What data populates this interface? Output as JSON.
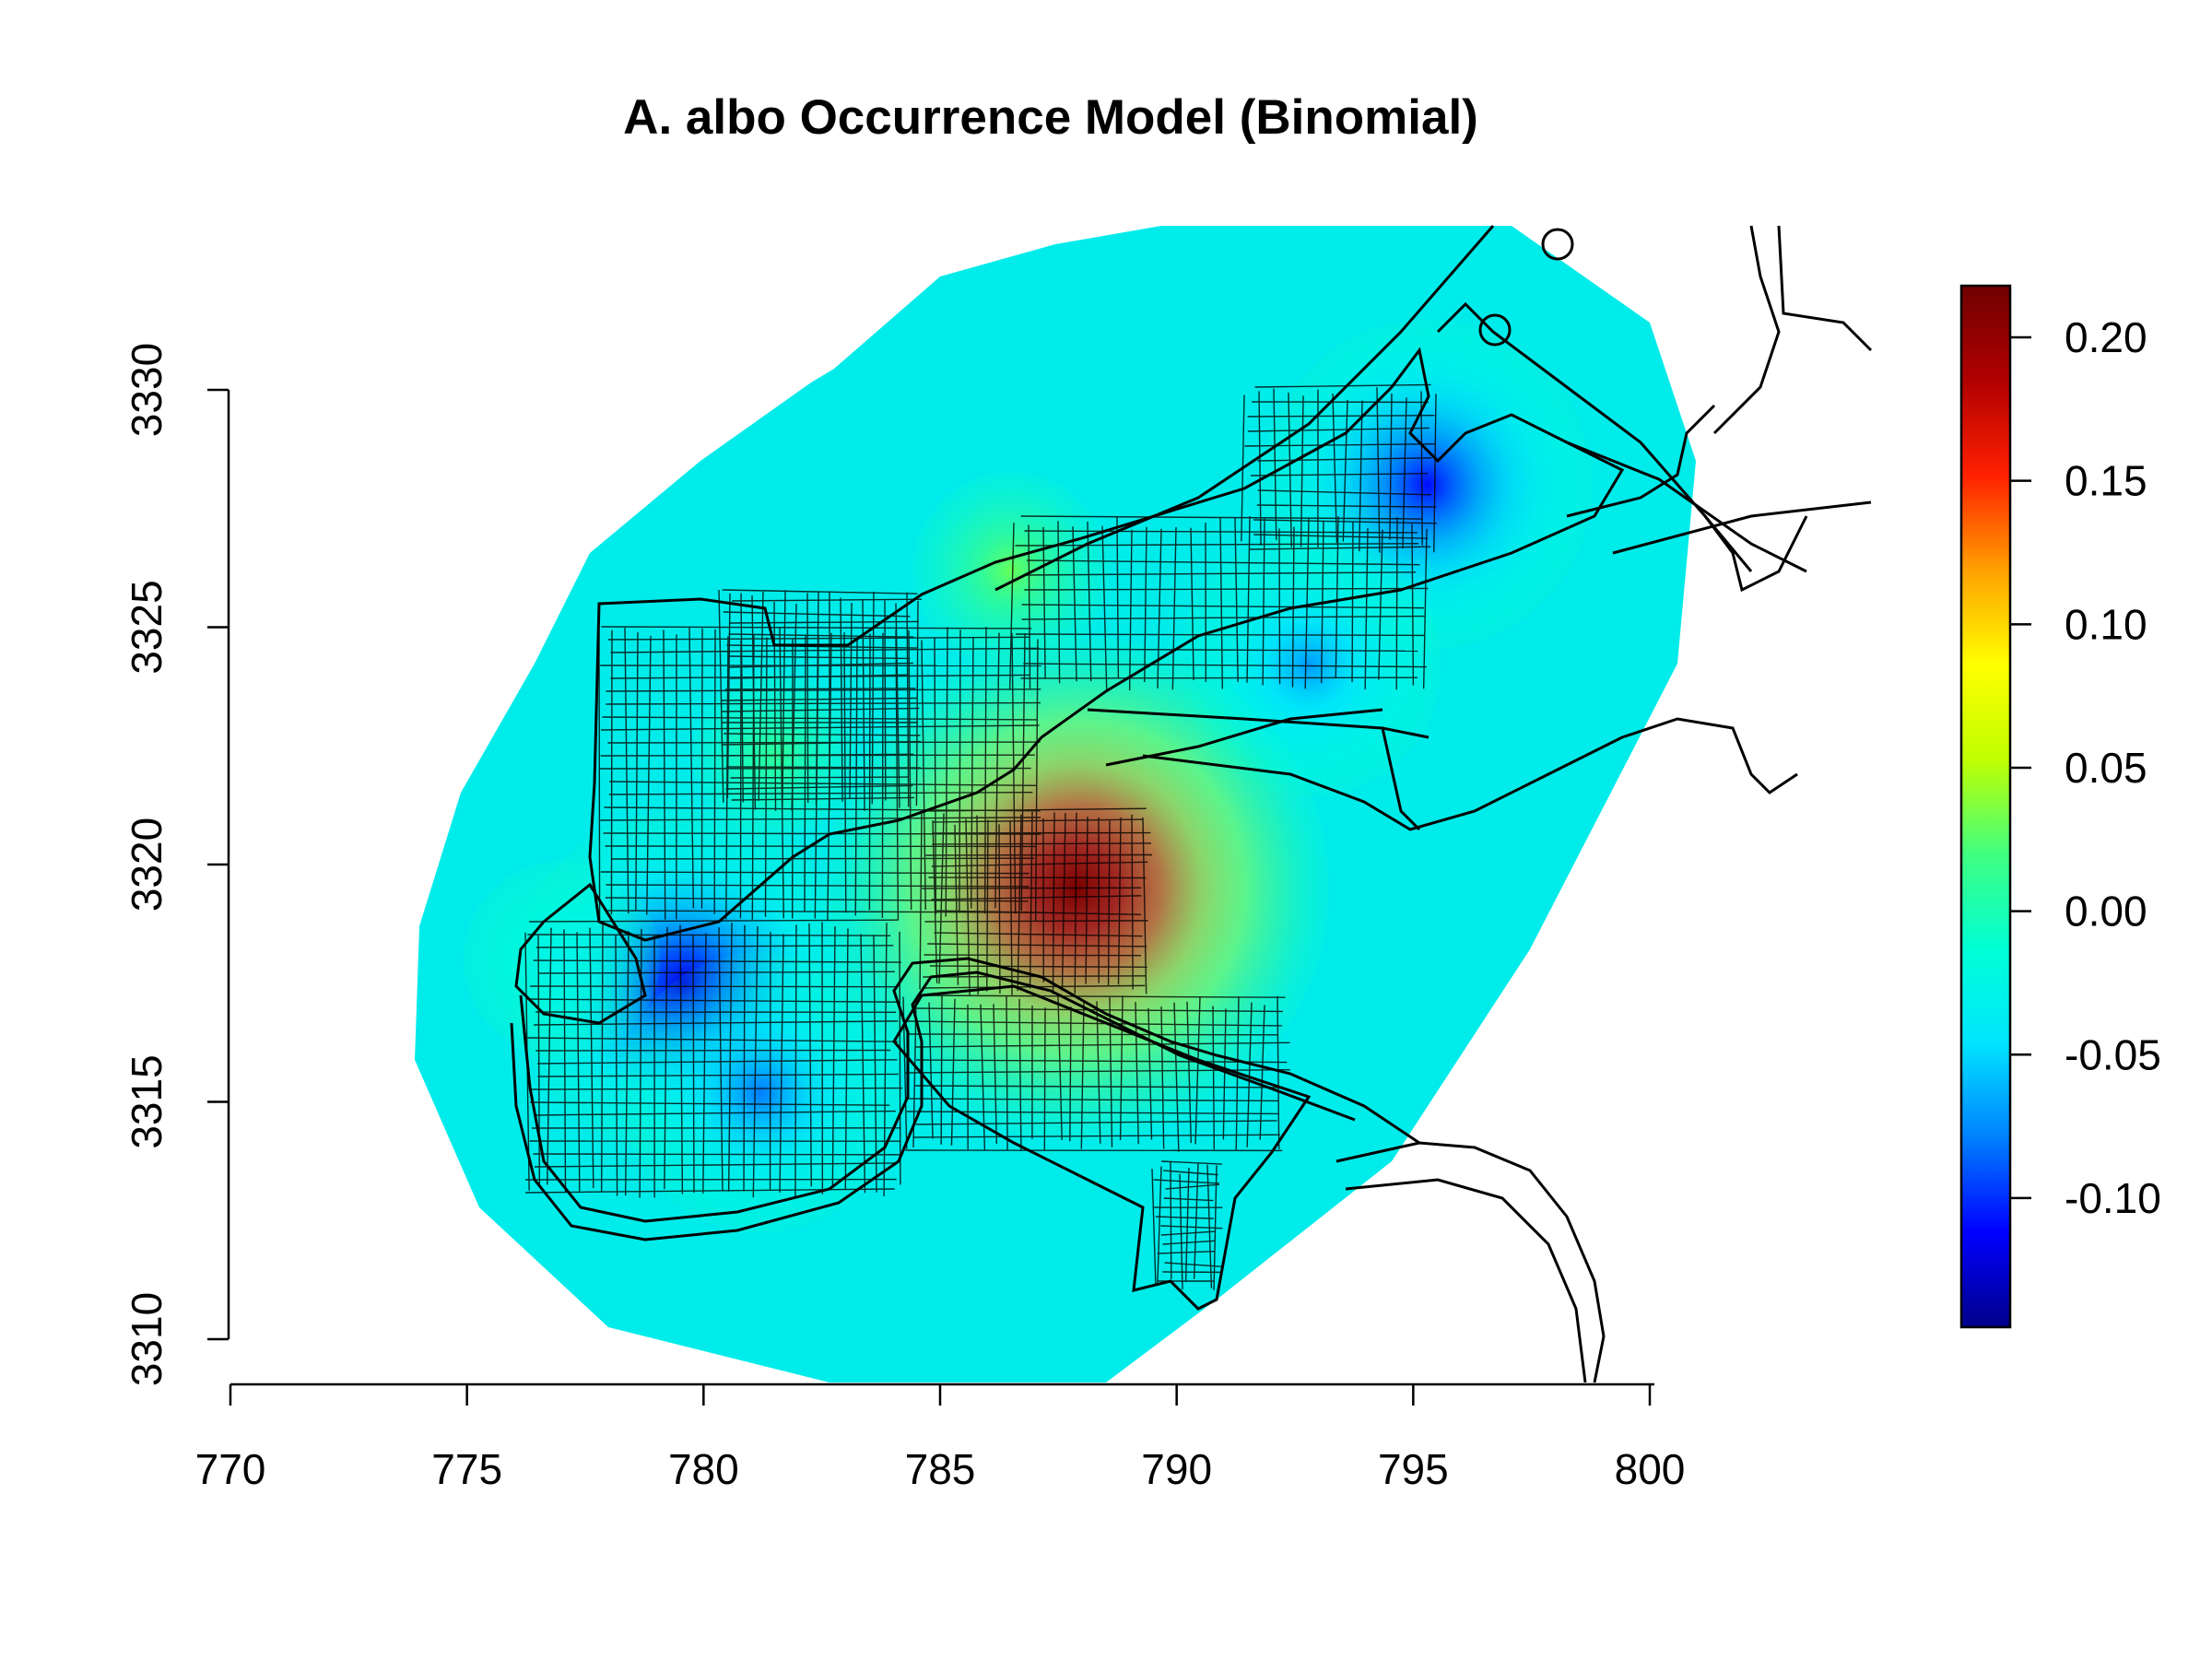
{
  "chart_data": {
    "type": "heatmap",
    "title": "A. albo Occurrence Model (Binomial)",
    "xlabel": "",
    "ylabel": "",
    "x_range": [
      770,
      800
    ],
    "y_range": [
      3310,
      3330
    ],
    "x_ticks": [
      "770",
      "775",
      "780",
      "785",
      "790",
      "795",
      "800"
    ],
    "y_ticks": [
      "3310",
      "3315",
      "3320",
      "3325",
      "3330"
    ],
    "colorbar": {
      "range": [
        -0.145,
        0.218
      ],
      "ticks": [
        "0.20",
        "0.15",
        "0.10",
        "0.05",
        "0.00",
        "-0.05",
        "-0.10"
      ],
      "palette": [
        "#00008b",
        "#0000ff",
        "#0080ff",
        "#00e5ff",
        "#00ffd5",
        "#40ff80",
        "#c0ff00",
        "#ffff00",
        "#ffa000",
        "#ff2000",
        "#b00000",
        "#700000"
      ]
    },
    "surface": {
      "baseline": 0.0,
      "hotspots": [
        {
          "x": 787.9,
          "y": 3319.5,
          "value": 0.215
        },
        {
          "x": 786.5,
          "y": 3326.2,
          "value": 0.03
        },
        {
          "x": 781.5,
          "y": 3322.3,
          "value": 0.01
        },
        {
          "x": 779.6,
          "y": 3317.5,
          "value": -0.12
        },
        {
          "x": 781.2,
          "y": 3315.2,
          "value": -0.08
        },
        {
          "x": 795.3,
          "y": 3328.0,
          "value": -0.11
        },
        {
          "x": 792.8,
          "y": 3324.2,
          "value": -0.07
        },
        {
          "x": 777.0,
          "y": 3318.0,
          "value": -0.03
        }
      ]
    },
    "legend": "right",
    "grid": false
  }
}
